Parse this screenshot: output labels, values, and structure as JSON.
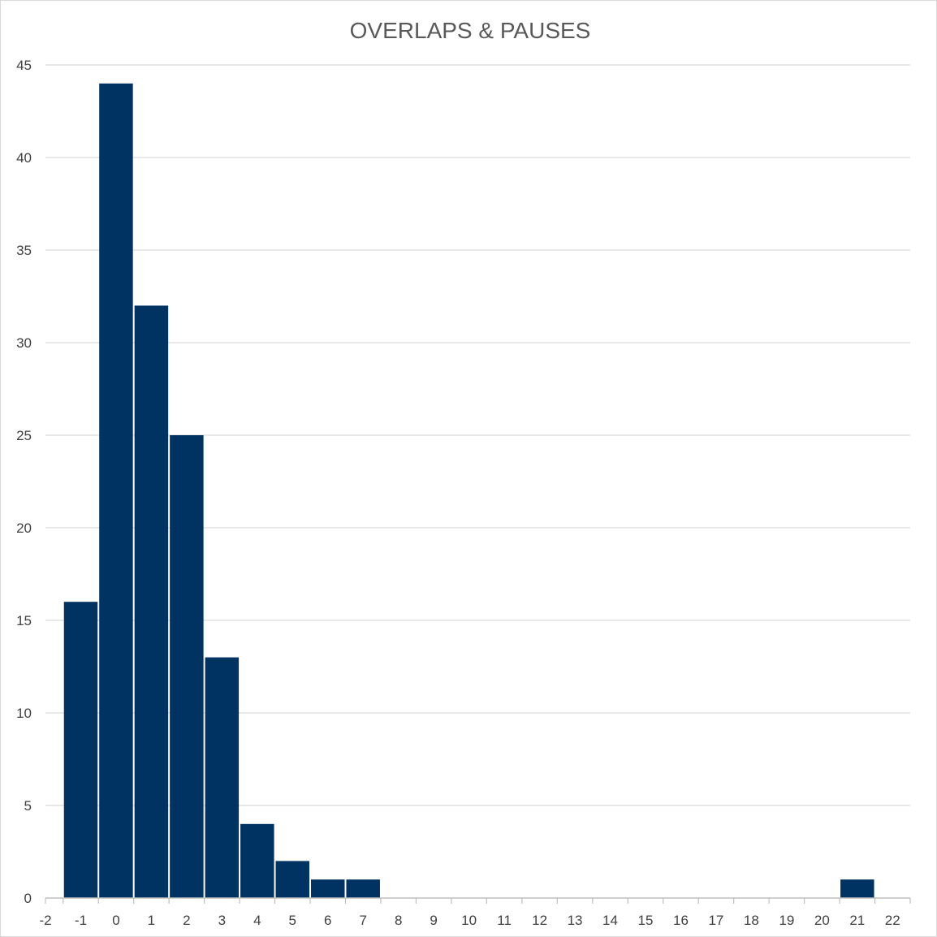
{
  "chart_data": {
    "type": "bar",
    "title": "OVERLAPS & PAUSES",
    "xlabel": "",
    "ylabel": "",
    "x_ticks": [
      "-2",
      "-1",
      "0",
      "1",
      "2",
      "3",
      "4",
      "5",
      "6",
      "7",
      "8",
      "9",
      "10",
      "11",
      "12",
      "13",
      "14",
      "15",
      "16",
      "17",
      "18",
      "19",
      "20",
      "21",
      "22"
    ],
    "xlim": [
      -2,
      22.5
    ],
    "ylim": [
      0,
      45
    ],
    "y_ticks": [
      0,
      5,
      10,
      15,
      20,
      25,
      30,
      35,
      40,
      45
    ],
    "bins": [
      {
        "x": -1,
        "value": 16
      },
      {
        "x": 0,
        "value": 44
      },
      {
        "x": 1,
        "value": 32
      },
      {
        "x": 2,
        "value": 25
      },
      {
        "x": 3,
        "value": 13
      },
      {
        "x": 4,
        "value": 4
      },
      {
        "x": 5,
        "value": 2
      },
      {
        "x": 6,
        "value": 1
      },
      {
        "x": 7,
        "value": 1
      },
      {
        "x": 21,
        "value": 1
      }
    ],
    "grid": true,
    "legend": "none",
    "colors": {
      "bar": "#003262",
      "grid": "#d9d9d9",
      "axis": "#bfbfbf",
      "title": "#595959",
      "tick_text": "#404040"
    }
  }
}
